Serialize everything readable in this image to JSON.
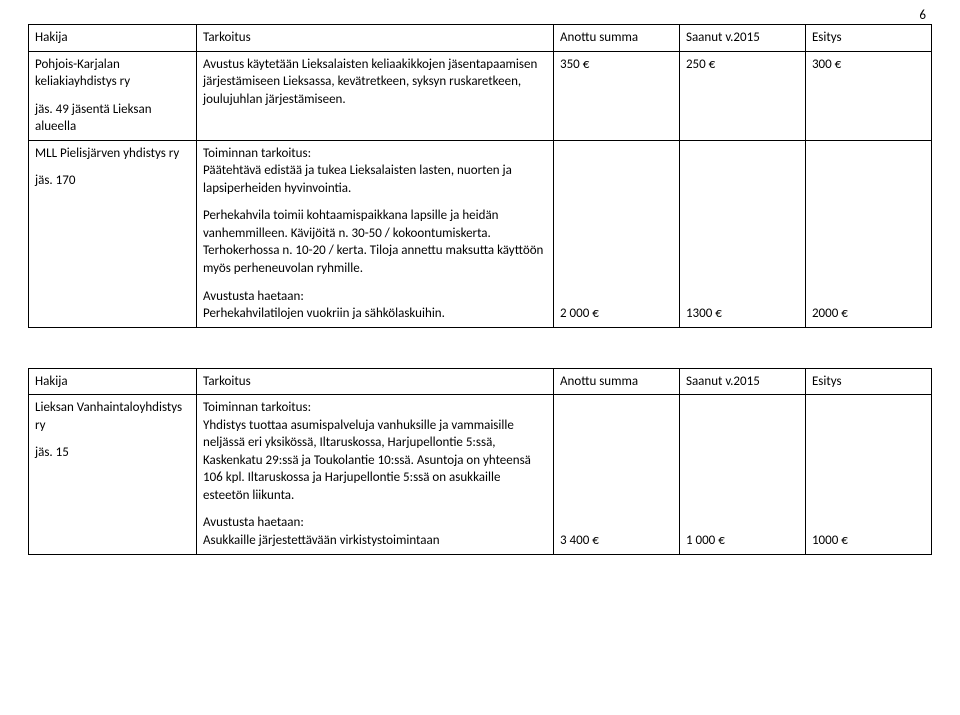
{
  "page_number": "6",
  "table1": {
    "header": {
      "app": "Hakija",
      "purp": "Tarkoitus",
      "req": "Anottu summa",
      "prev": "Saanut v.2015",
      "prop": "Esitys"
    },
    "r1": {
      "app1": "Pohjois-Karjalan keliakiayhdistys ry",
      "app2": "jäs. 49 jäsentä Lieksan alueella",
      "purp": "Avustus käytetään Lieksalaisten keliaakikkojen jäsentapaamisen järjestämiseen Lieksassa, kevätretkeen, syksyn ruskaretkeen, joulujuhlan järjestämiseen.",
      "req": "350 €",
      "prev": "250 €",
      "prop": "300 €"
    },
    "r2": {
      "app1": "MLL Pielisjärven yhdistys ry",
      "app2": "jäs. 170",
      "p1": "Toiminnan tarkoitus:\nPäätehtävä edistää ja tukea Lieksalaisten lasten, nuorten ja lapsiperheiden hyvinvointia.",
      "p2": "Perhekahvila toimii kohtaamispaikkana lapsille ja heidän vanhemmilleen. Kävijöitä n. 30-50 / kokoontumiskerta. Terhokerhossa n. 10-20 / kerta. Tiloja annettu maksutta käyttöön myös perheneuvolan ryhmille.",
      "p3": "Avustusta haetaan:\nPerhekahvilatilojen vuokriin ja sähkölaskuihin.",
      "req": "2 000 €",
      "prev": "1300 €",
      "prop": "2000 €"
    }
  },
  "table2": {
    "header": {
      "app": "Hakija",
      "purp": "Tarkoitus",
      "req": "Anottu summa",
      "prev": "Saanut v.2015",
      "prop": "Esitys"
    },
    "r1": {
      "app1": "Lieksan Vanhaintaloyhdistys ry",
      "app2": "jäs. 15",
      "p1": "Toiminnan tarkoitus:\nYhdistys tuottaa asumispalveluja vanhuksille ja vammaisille neljässä eri yksikössä, Iltaruskossa, Harjupellontie 5:ssä, Kaskenkatu 29:ssä ja Toukolantie 10:ssä. Asuntoja on yhteensä 106 kpl. Iltaruskossa ja Harjupellontie 5:ssä on asukkaille esteetön liikunta.",
      "p2": "Avustusta haetaan:\nAsukkaille järjestettävään virkistystoimintaan",
      "req": "3 400 €",
      "prev": "1 000 €",
      "prop": "1000 €"
    }
  }
}
